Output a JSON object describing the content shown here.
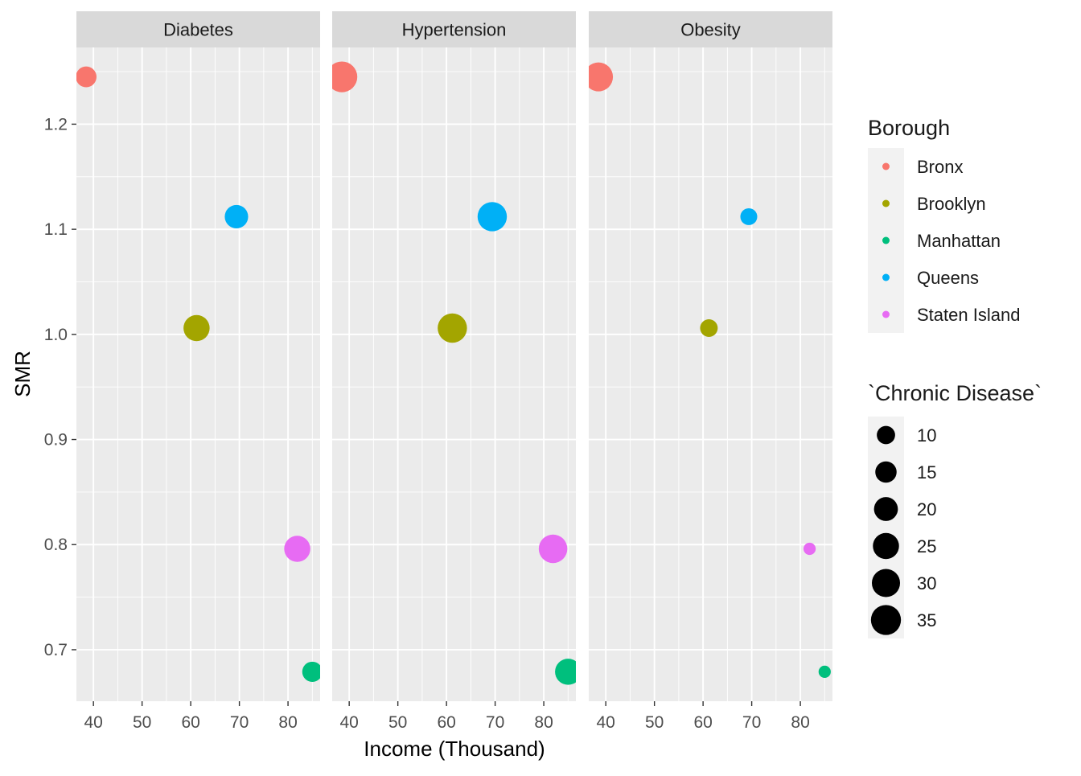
{
  "chart_data": {
    "type": "scatter",
    "facet_by": "chronic disease type",
    "xlabel": "Income (Thousand)",
    "ylabel": "SMR",
    "xlim": [
      36.5,
      86.6
    ],
    "ylim": [
      0.651,
      1.273
    ],
    "x_ticks": [
      40,
      50,
      60,
      70,
      80
    ],
    "x_tick_labels": [
      "40",
      "50",
      "60",
      "70",
      "80"
    ],
    "y_ticks": [
      0.7,
      0.8,
      0.9,
      1.0,
      1.1,
      1.2
    ],
    "y_tick_labels": [
      "0.7",
      "0.8",
      "0.9",
      "1.0",
      "1.1",
      "1.2"
    ],
    "grid": true,
    "panels": [
      {
        "title": "Diabetes",
        "points": [
          {
            "borough": "Bronx",
            "x": 38.5,
            "y": 1.245,
            "size": 14
          },
          {
            "borough": "Brooklyn",
            "x": 61.2,
            "y": 1.006,
            "size": 25
          },
          {
            "borough": "Manhattan",
            "x": 85.0,
            "y": 0.679,
            "size": 13
          },
          {
            "borough": "Queens",
            "x": 69.4,
            "y": 1.112,
            "size": 19
          },
          {
            "borough": "Staten Island",
            "x": 81.9,
            "y": 0.796,
            "size": 25
          }
        ]
      },
      {
        "title": "Hypertension",
        "points": [
          {
            "borough": "Bronx",
            "x": 38.5,
            "y": 1.245,
            "size": 37
          },
          {
            "borough": "Brooklyn",
            "x": 61.2,
            "y": 1.006,
            "size": 33
          },
          {
            "borough": "Manhattan",
            "x": 85.0,
            "y": 0.679,
            "size": 25
          },
          {
            "borough": "Queens",
            "x": 69.4,
            "y": 1.112,
            "size": 33
          },
          {
            "borough": "Staten Island",
            "x": 81.9,
            "y": 0.796,
            "size": 31
          }
        ]
      },
      {
        "title": "Obesity",
        "points": [
          {
            "borough": "Bronx",
            "x": 38.5,
            "y": 1.245,
            "size": 32
          },
          {
            "borough": "Brooklyn",
            "x": 61.2,
            "y": 1.006,
            "size": 9
          },
          {
            "borough": "Manhattan",
            "x": 85.0,
            "y": 0.679,
            "size": 3
          },
          {
            "borough": "Queens",
            "x": 69.4,
            "y": 1.112,
            "size": 8
          },
          {
            "borough": "Staten Island",
            "x": 81.9,
            "y": 0.796,
            "size": 3
          }
        ]
      }
    ],
    "legend": {
      "placement": "right",
      "color": {
        "title": "Borough",
        "entries": [
          {
            "label": "Bronx",
            "color": "#F8766D"
          },
          {
            "label": "Brooklyn",
            "color": "#A3A500"
          },
          {
            "label": "Manhattan",
            "color": "#00BF7D"
          },
          {
            "label": "Queens",
            "color": "#00B0F6"
          },
          {
            "label": "Staten Island",
            "color": "#E76BF3"
          }
        ]
      },
      "size": {
        "title": "`Chronic Disease`",
        "entries": [
          {
            "label": "10",
            "value": 10
          },
          {
            "label": "15",
            "value": 15
          },
          {
            "label": "20",
            "value": 20
          },
          {
            "label": "25",
            "value": 25
          },
          {
            "label": "30",
            "value": 30
          },
          {
            "label": "35",
            "value": 35
          }
        ]
      }
    },
    "colors": {
      "panel_background": "#EBEBEB",
      "grid_line": "#FFFFFF",
      "strip_background": "#D9D9D9",
      "text_dark": "#1A1A1A",
      "tick_text": "#4D4D4D",
      "tick_mark": "#333333",
      "legend_key_background": "#F2F2F2",
      "size_key_color": "#000000"
    }
  }
}
